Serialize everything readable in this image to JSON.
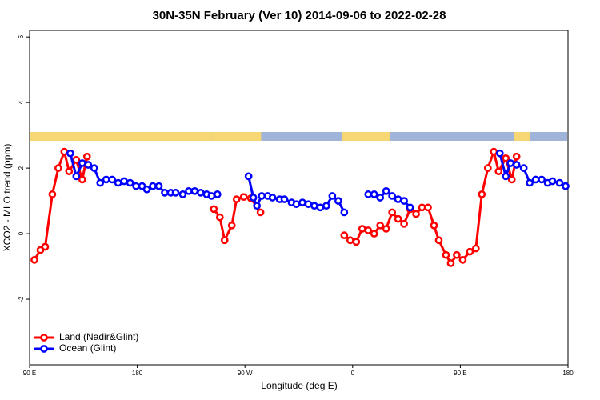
{
  "chart_data": {
    "type": "line",
    "title": "30N-35N February (Ver 10)   2014-09-06 to 2022-02-28",
    "x_label": "Longitude (deg E)",
    "y_label": "XCO2 - MLO trend (ppm)",
    "xlim": [
      90,
      540
    ],
    "xticks": [
      {
        "value": 90,
        "label": "90 E"
      },
      {
        "value": 180,
        "label": "180"
      },
      {
        "value": 270,
        "label": "90 W"
      },
      {
        "value": 360,
        "label": "0"
      },
      {
        "value": 450,
        "label": "90 E"
      },
      {
        "value": 540,
        "label": "180"
      }
    ],
    "ylim": [
      -4,
      6.2
    ],
    "yticks": [
      -2,
      0,
      2,
      4,
      6
    ],
    "legend": "bottom-left",
    "series": [
      {
        "name": "Land (Nadir&Glint)",
        "color": "#ff0000",
        "x": [
          94,
          99,
          103,
          109,
          114,
          119,
          123,
          129,
          134,
          138,
          null,
          244,
          249,
          253,
          259,
          263,
          269,
          275,
          283,
          null,
          353,
          358,
          363,
          368,
          373,
          378,
          383,
          388,
          393,
          398,
          403,
          408,
          413,
          418,
          423,
          428,
          432,
          438,
          442,
          447,
          452,
          458,
          463,
          468,
          473,
          478,
          482,
          488,
          493,
          497
        ],
        "values": [
          -0.8,
          -0.5,
          -0.4,
          1.2,
          2.0,
          2.5,
          1.9,
          2.25,
          1.65,
          2.35,
          null,
          0.75,
          0.5,
          -0.2,
          0.25,
          1.05,
          1.12,
          1.08,
          0.65,
          null,
          -0.05,
          -0.2,
          -0.25,
          0.15,
          0.1,
          0.0,
          0.25,
          0.15,
          0.65,
          0.45,
          0.3,
          0.75,
          0.6,
          0.8,
          0.8,
          0.25,
          -0.2,
          -0.65,
          -0.9,
          -0.65,
          -0.8,
          -0.55,
          -0.45,
          1.2,
          2.0,
          2.5,
          1.9,
          2.3,
          1.65,
          2.35
        ]
      },
      {
        "name": "Ocean (Glint)",
        "color": "#0000ff",
        "x": [
          124,
          129,
          134,
          139,
          144,
          149,
          154,
          159,
          164,
          169,
          174,
          179,
          184,
          188,
          193,
          198,
          203,
          208,
          212,
          218,
          223,
          228,
          233,
          238,
          242,
          247,
          null,
          273,
          277,
          280,
          284,
          289,
          293,
          299,
          303,
          309,
          313,
          318,
          323,
          328,
          333,
          338,
          343,
          348,
          353,
          null,
          373,
          378,
          383,
          388,
          393,
          398,
          403,
          408,
          null,
          483,
          488,
          492,
          497,
          503,
          508,
          513,
          518,
          523,
          527,
          533,
          538
        ],
        "values": [
          2.45,
          1.75,
          2.15,
          2.1,
          2.0,
          1.55,
          1.65,
          1.65,
          1.55,
          1.6,
          1.55,
          1.45,
          1.45,
          1.35,
          1.45,
          1.45,
          1.25,
          1.25,
          1.25,
          1.2,
          1.3,
          1.3,
          1.25,
          1.2,
          1.15,
          1.2,
          null,
          1.75,
          1.1,
          0.85,
          1.15,
          1.15,
          1.1,
          1.05,
          1.05,
          0.95,
          0.9,
          0.95,
          0.9,
          0.85,
          0.8,
          0.85,
          1.15,
          1.0,
          0.65,
          null,
          1.2,
          1.2,
          1.1,
          1.3,
          1.15,
          1.05,
          1.0,
          0.8,
          null,
          2.45,
          1.75,
          2.15,
          2.1,
          2.0,
          1.55,
          1.65,
          1.65,
          1.55,
          1.6,
          1.55,
          1.45
        ]
      }
    ]
  }
}
